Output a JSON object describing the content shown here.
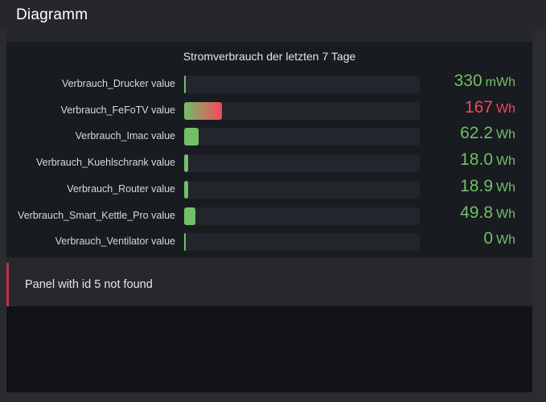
{
  "header": {
    "title": "Diagramm"
  },
  "panel": {
    "title": "Stromverbrauch der letzten 7 Tage",
    "rows": [
      {
        "label": "Verbrauch_Drucker value",
        "value": "330",
        "unit": "mWh",
        "fill": 0.004,
        "gradient": false,
        "color": "#73bf69"
      },
      {
        "label": "Verbrauch_FeFoTV value",
        "value": "167",
        "unit": "Wh",
        "fill": 0.16,
        "gradient": true,
        "color": "#f2495c"
      },
      {
        "label": "Verbrauch_Imac value",
        "value": "62.2",
        "unit": "Wh",
        "fill": 0.06,
        "gradient": false,
        "color": "#73bf69"
      },
      {
        "label": "Verbrauch_Kuehlschrank value",
        "value": "18.0",
        "unit": "Wh",
        "fill": 0.017,
        "gradient": false,
        "color": "#73bf69"
      },
      {
        "label": "Verbrauch_Router value",
        "value": "18.9",
        "unit": "Wh",
        "fill": 0.018,
        "gradient": false,
        "color": "#73bf69"
      },
      {
        "label": "Verbrauch_Smart_Kettle_Pro value",
        "value": "49.8",
        "unit": "Wh",
        "fill": 0.048,
        "gradient": false,
        "color": "#73bf69"
      },
      {
        "label": "Verbrauch_Ventilator value",
        "value": "0",
        "unit": "Wh",
        "fill": 0.002,
        "gradient": false,
        "color": "#73bf69"
      }
    ]
  },
  "error_panel": {
    "message": "Panel with id 5 not found"
  },
  "colors": {
    "green": "#73bf69",
    "red": "#f2495c"
  }
}
